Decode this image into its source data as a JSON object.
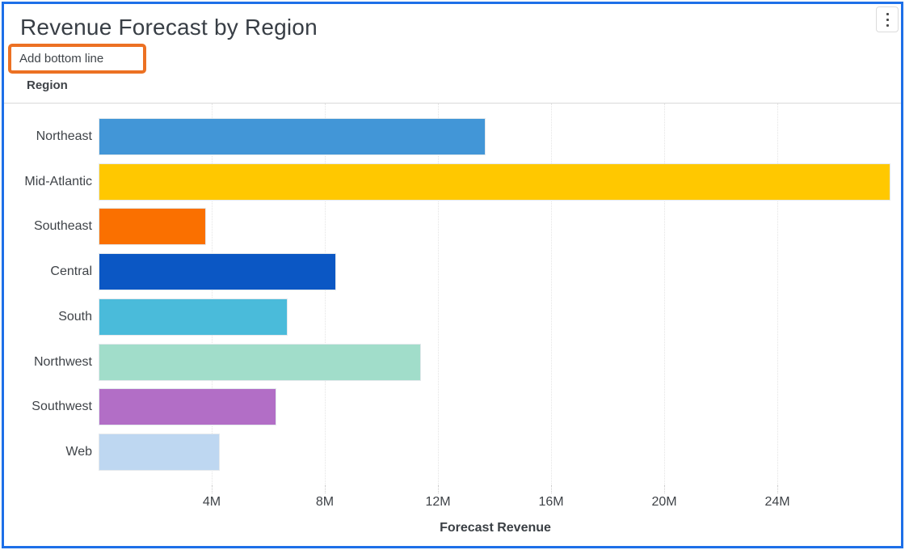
{
  "window": {
    "border_color": "#1d6fe8"
  },
  "header": {
    "title": "Revenue Forecast by Region",
    "action_label": "Add bottom line",
    "annotation_color": "#ec7123",
    "menu_icon": "kebab-menu-icon"
  },
  "chart_data": {
    "type": "bar",
    "orientation": "horizontal",
    "title": "Revenue Forecast by Region",
    "categories": [
      "Northeast",
      "Mid-Atlantic",
      "Southeast",
      "Central",
      "South",
      "Northwest",
      "Southwest",
      "Web"
    ],
    "values": [
      13.7,
      28.0,
      3.8,
      8.4,
      6.7,
      11.4,
      6.3,
      4.3
    ],
    "unit": "M",
    "bar_colors": [
      "#4296d7",
      "#ffc800",
      "#fa7000",
      "#0b57c4",
      "#4abbda",
      "#a1ddca",
      "#b26ec6",
      "#bed7f1"
    ],
    "xlabel": "Forecast Revenue",
    "ylabel": "Region",
    "x_ticks": [
      "4M",
      "8M",
      "12M",
      "16M",
      "20M",
      "24M"
    ],
    "x_tick_values": [
      4,
      8,
      12,
      16,
      20,
      24
    ],
    "xlim": [
      0,
      28.06
    ],
    "grid": "vertical-dotted",
    "legend": "none"
  }
}
